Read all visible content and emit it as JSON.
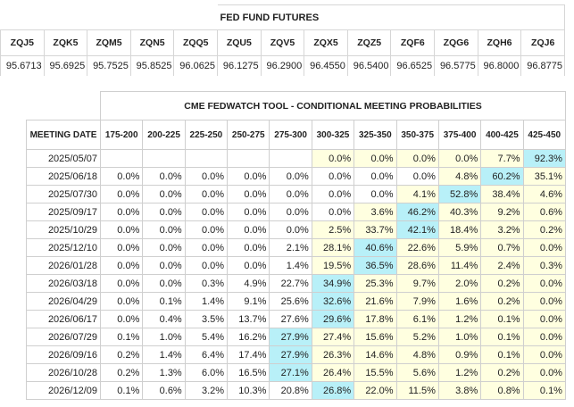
{
  "futures": {
    "title": "FED FUND FUTURES",
    "contracts": [
      {
        "code": "ZQJ5",
        "price": "95.6713"
      },
      {
        "code": "ZQK5",
        "price": "95.6925"
      },
      {
        "code": "ZQM5",
        "price": "95.7525"
      },
      {
        "code": "ZQN5",
        "price": "95.8525"
      },
      {
        "code": "ZQQ5",
        "price": "96.0625"
      },
      {
        "code": "ZQU5",
        "price": "96.1275"
      },
      {
        "code": "ZQV5",
        "price": "96.2900"
      },
      {
        "code": "ZQX5",
        "price": "96.4550"
      },
      {
        "code": "ZQZ5",
        "price": "96.5400"
      },
      {
        "code": "ZQF6",
        "price": "96.6525"
      },
      {
        "code": "ZQG6",
        "price": "96.5775"
      },
      {
        "code": "ZQH6",
        "price": "96.8000"
      },
      {
        "code": "ZQJ6",
        "price": "96.8775"
      }
    ]
  },
  "fedwatch": {
    "title": "CME FEDWATCH TOOL - CONDITIONAL MEETING PROBABILITIES",
    "date_header": "MEETING DATE",
    "ranges": [
      "175-200",
      "200-225",
      "225-250",
      "250-275",
      "275-300",
      "300-325",
      "325-350",
      "350-375",
      "375-400",
      "400-425",
      "425-450"
    ],
    "colors": {
      "current_range": "#ffffe0",
      "most_likely": "#b8f0f8"
    },
    "rows": [
      {
        "date": "2025/05/07",
        "values": [
          "",
          "",
          "",
          "",
          "",
          "0.0%",
          "0.0%",
          "0.0%",
          "0.0%",
          "7.7%",
          "92.3%"
        ],
        "cur_from": 5,
        "max": 10
      },
      {
        "date": "2025/06/18",
        "values": [
          "0.0%",
          "0.0%",
          "0.0%",
          "0.0%",
          "0.0%",
          "0.0%",
          "0.0%",
          "0.0%",
          "4.8%",
          "60.2%",
          "35.1%"
        ],
        "cur_from": 8,
        "max": 9
      },
      {
        "date": "2025/07/30",
        "values": [
          "0.0%",
          "0.0%",
          "0.0%",
          "0.0%",
          "0.0%",
          "0.0%",
          "0.0%",
          "4.1%",
          "52.8%",
          "38.4%",
          "4.6%"
        ],
        "cur_from": 7,
        "max": 8
      },
      {
        "date": "2025/09/17",
        "values": [
          "0.0%",
          "0.0%",
          "0.0%",
          "0.0%",
          "0.0%",
          "0.0%",
          "3.6%",
          "46.2%",
          "40.3%",
          "9.2%",
          "0.6%"
        ],
        "cur_from": 6,
        "max": 7
      },
      {
        "date": "2025/10/29",
        "values": [
          "0.0%",
          "0.0%",
          "0.0%",
          "0.0%",
          "0.0%",
          "2.5%",
          "33.7%",
          "42.1%",
          "18.4%",
          "3.2%",
          "0.2%"
        ],
        "cur_from": 5,
        "max": 7
      },
      {
        "date": "2025/12/10",
        "values": [
          "0.0%",
          "0.0%",
          "0.0%",
          "0.0%",
          "2.1%",
          "28.1%",
          "40.6%",
          "22.6%",
          "5.9%",
          "0.7%",
          "0.0%"
        ],
        "cur_from": 5,
        "max": 6
      },
      {
        "date": "2026/01/28",
        "values": [
          "0.0%",
          "0.0%",
          "0.0%",
          "0.0%",
          "1.4%",
          "19.5%",
          "36.5%",
          "28.6%",
          "11.4%",
          "2.4%",
          "0.3%"
        ],
        "cur_from": 5,
        "max": 6
      },
      {
        "date": "2026/03/18",
        "values": [
          "0.0%",
          "0.0%",
          "0.3%",
          "4.9%",
          "22.7%",
          "34.9%",
          "25.3%",
          "9.7%",
          "2.0%",
          "0.2%",
          "0.0%"
        ],
        "cur_from": 5,
        "max": 5
      },
      {
        "date": "2026/04/29",
        "values": [
          "0.0%",
          "0.1%",
          "1.4%",
          "9.1%",
          "25.6%",
          "32.6%",
          "21.6%",
          "7.9%",
          "1.6%",
          "0.2%",
          "0.0%"
        ],
        "cur_from": 5,
        "max": 5
      },
      {
        "date": "2026/06/17",
        "values": [
          "0.0%",
          "0.4%",
          "3.5%",
          "13.7%",
          "27.6%",
          "29.6%",
          "17.8%",
          "6.1%",
          "1.2%",
          "0.1%",
          "0.0%"
        ],
        "cur_from": 5,
        "max": 5
      },
      {
        "date": "2026/07/29",
        "values": [
          "0.1%",
          "1.0%",
          "5.4%",
          "16.2%",
          "27.9%",
          "27.4%",
          "15.6%",
          "5.2%",
          "1.0%",
          "0.1%",
          "0.0%"
        ],
        "cur_from": 5,
        "max": 4
      },
      {
        "date": "2026/09/16",
        "values": [
          "0.2%",
          "1.4%",
          "6.4%",
          "17.4%",
          "27.9%",
          "26.3%",
          "14.6%",
          "4.8%",
          "0.9%",
          "0.1%",
          "0.0%"
        ],
        "cur_from": 5,
        "max": 4
      },
      {
        "date": "2026/10/28",
        "values": [
          "0.2%",
          "1.3%",
          "6.0%",
          "16.5%",
          "27.1%",
          "26.4%",
          "15.5%",
          "5.6%",
          "1.2%",
          "0.2%",
          "0.0%"
        ],
        "cur_from": 5,
        "max": 4
      },
      {
        "date": "2026/12/09",
        "values": [
          "0.1%",
          "0.6%",
          "3.2%",
          "10.3%",
          "20.8%",
          "26.8%",
          "22.0%",
          "11.5%",
          "3.8%",
          "0.8%",
          "0.1%"
        ],
        "cur_from": 5,
        "max": 5
      }
    ]
  }
}
